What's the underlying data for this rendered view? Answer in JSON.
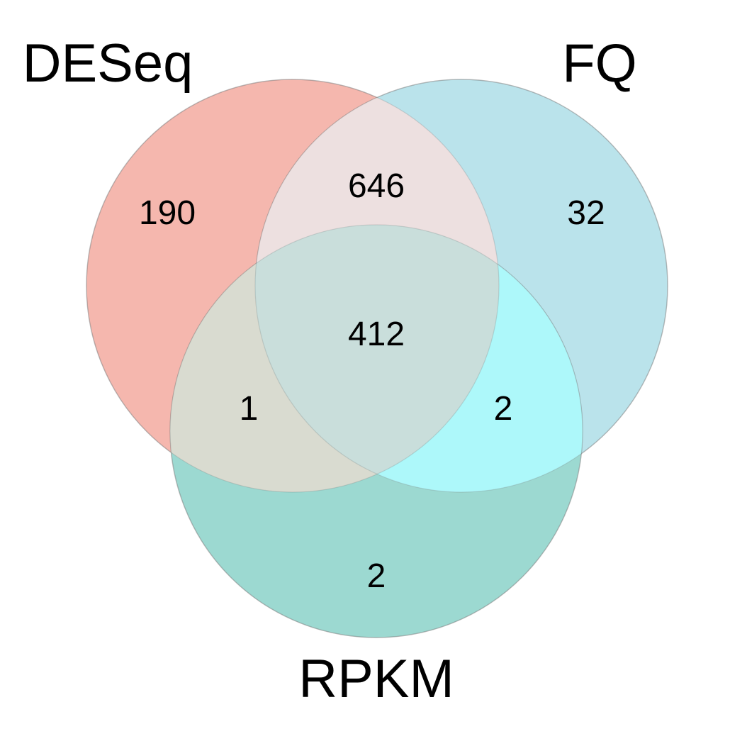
{
  "sets": [
    {
      "name": "DESeq",
      "color": "#F08070"
    },
    {
      "name": "FQ",
      "color": "#80CCDD"
    },
    {
      "name": "RPKM",
      "color": "#44B8A8"
    }
  ],
  "regions": {
    "deseq_only": "190",
    "fq_only": "32",
    "rpkm_only": "2",
    "deseq_fq": "646",
    "deseq_rpkm": "1",
    "fq_rpkm": "2",
    "all_three": "412"
  }
}
